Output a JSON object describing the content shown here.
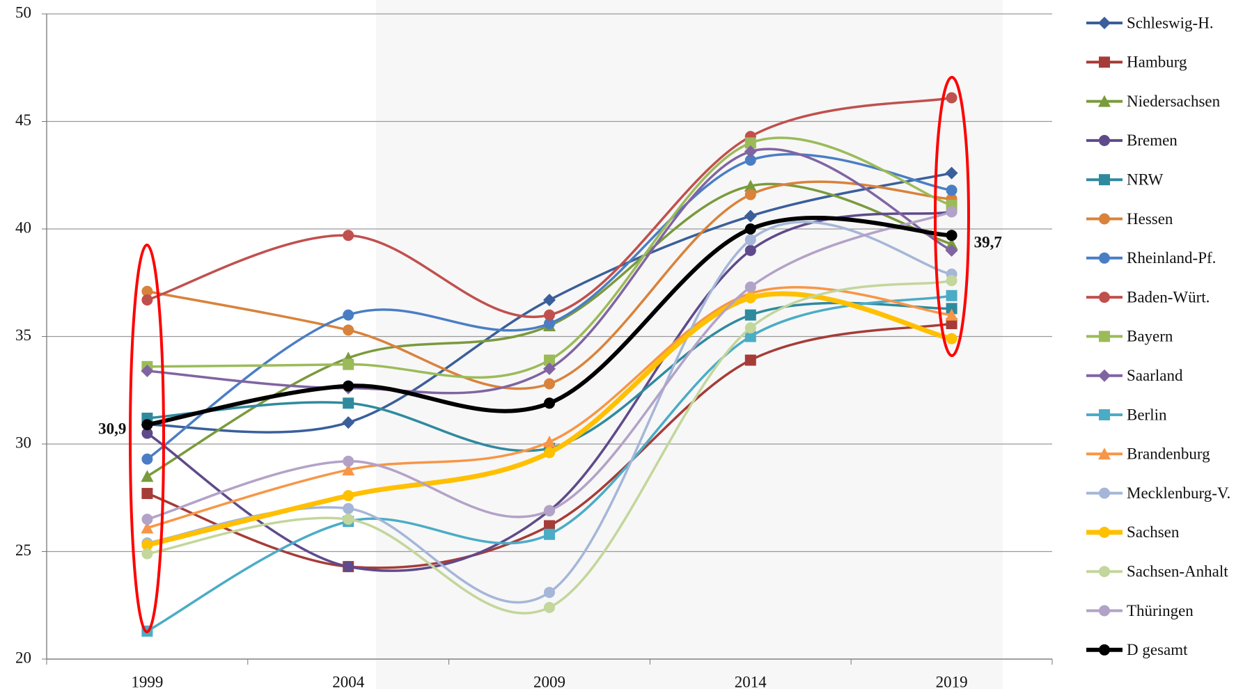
{
  "chart_data": {
    "type": "line",
    "categories": [
      "1999",
      "2004",
      "2009",
      "2014",
      "2019"
    ],
    "ylim": [
      20,
      50
    ],
    "yticks": [
      20,
      25,
      30,
      35,
      40,
      45,
      50
    ],
    "grid": true,
    "smooth": true,
    "legend": "right",
    "series": [
      {
        "name": "Schleswig-H.",
        "color": "#3a5f9a",
        "marker": "diamond",
        "values": [
          30.9,
          31.0,
          36.7,
          40.6,
          42.6
        ]
      },
      {
        "name": "Hamburg",
        "color": "#a53c38",
        "marker": "square",
        "values": [
          27.7,
          24.3,
          26.2,
          33.9,
          35.6
        ]
      },
      {
        "name": "Niedersachsen",
        "color": "#7a9a3c",
        "marker": "triangle",
        "values": [
          28.5,
          34.0,
          35.5,
          42.0,
          39.3
        ]
      },
      {
        "name": "Bremen",
        "color": "#5f4a8b",
        "marker": "circle",
        "values": [
          30.5,
          24.3,
          26.9,
          39.0,
          40.8
        ]
      },
      {
        "name": "NRW",
        "color": "#2f8a9e",
        "marker": "square",
        "values": [
          31.2,
          31.9,
          29.8,
          36.0,
          36.3
        ]
      },
      {
        "name": "Hessen",
        "color": "#d9823b",
        "marker": "circle",
        "values": [
          37.1,
          35.3,
          32.8,
          41.6,
          41.4
        ]
      },
      {
        "name": "Rheinland-Pf.",
        "color": "#4a7ec4",
        "marker": "circle",
        "values": [
          29.3,
          36.0,
          35.6,
          43.2,
          41.8
        ]
      },
      {
        "name": "Baden-Würt.",
        "color": "#c0504d",
        "marker": "circle",
        "values": [
          36.7,
          39.7,
          36.0,
          44.3,
          46.1
        ]
      },
      {
        "name": "Bayern",
        "color": "#9bbb59",
        "marker": "square",
        "values": [
          33.6,
          33.7,
          33.9,
          44.0,
          41.1
        ]
      },
      {
        "name": "Saarland",
        "color": "#8064a2",
        "marker": "diamond",
        "values": [
          33.4,
          32.6,
          33.5,
          43.6,
          39.0
        ]
      },
      {
        "name": "Berlin",
        "color": "#4bacc6",
        "marker": "square",
        "values": [
          21.3,
          26.4,
          25.8,
          35.0,
          36.9
        ]
      },
      {
        "name": "Brandenburg",
        "color": "#f79646",
        "marker": "triangle",
        "values": [
          26.1,
          28.8,
          30.1,
          37.0,
          36.0
        ]
      },
      {
        "name": "Mecklenburg-V.",
        "color": "#a5b6d8",
        "marker": "circle",
        "values": [
          25.4,
          27.0,
          23.1,
          39.5,
          37.9
        ]
      },
      {
        "name": "Sachsen",
        "color": "#ffc000",
        "marker": "circle",
        "line_width": 7,
        "values": [
          25.3,
          27.6,
          29.6,
          36.8,
          34.9
        ]
      },
      {
        "name": "Sachsen-Anhalt",
        "color": "#c3d69b",
        "marker": "circle",
        "values": [
          24.9,
          26.5,
          22.4,
          35.4,
          37.6
        ]
      },
      {
        "name": "Thüringen",
        "color": "#b3a2c7",
        "marker": "circle",
        "values": [
          26.5,
          29.2,
          26.9,
          37.3,
          40.8
        ]
      },
      {
        "name": "D gesamt",
        "color": "#000000",
        "marker": "circle",
        "line_width": 6,
        "values": [
          30.9,
          32.7,
          31.9,
          40.0,
          39.7
        ],
        "value_labels": [
          "30,9",
          null,
          null,
          null,
          "39,7"
        ]
      }
    ]
  }
}
